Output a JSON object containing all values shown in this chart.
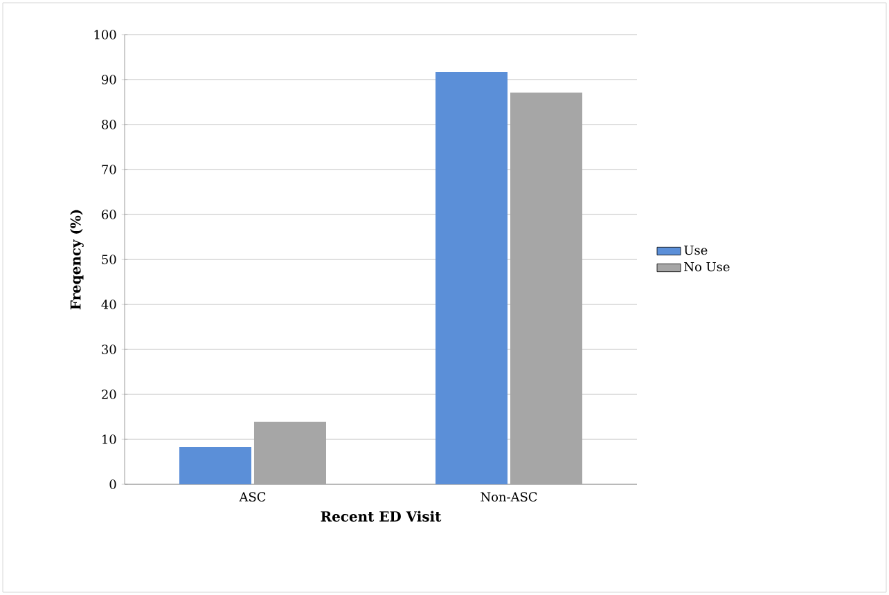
{
  "chart_data": {
    "type": "bar",
    "xlabel": "Recent ED Visit",
    "ylabel": "Freqency (%)",
    "categories": [
      "ASC",
      "Non-ASC"
    ],
    "series": [
      {
        "name": "Use",
        "color": "#5b8fd8",
        "values": [
          8.3,
          91.7
        ]
      },
      {
        "name": "No Use",
        "color": "#a6a6a6",
        "values": [
          13.9,
          87.1
        ]
      }
    ],
    "ylim": [
      0,
      100
    ],
    "yticks": [
      0,
      10,
      20,
      30,
      40,
      50,
      60,
      70,
      80,
      90,
      100
    ],
    "grid": "y",
    "legend": "right"
  }
}
